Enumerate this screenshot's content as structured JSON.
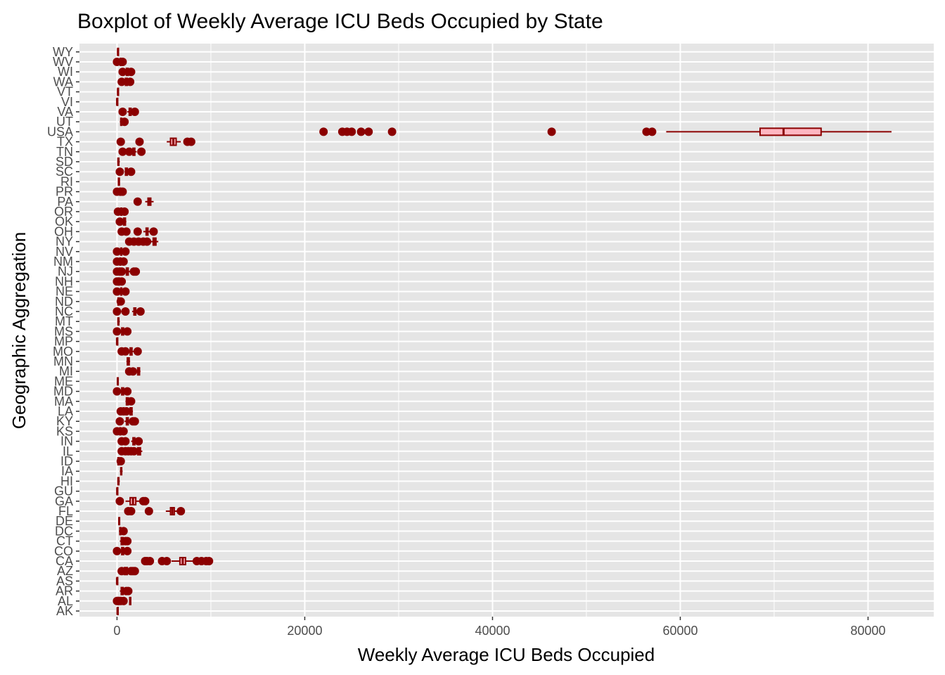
{
  "chart_data": {
    "type": "boxplot",
    "orientation": "horizontal",
    "title": "Boxplot of Weekly Average ICU Beds Occupied by State",
    "xlabel": "Weekly Average ICU Beds Occupied",
    "ylabel": "Geographic Aggregation",
    "xlim": [
      -4000,
      87000
    ],
    "x_ticks": [
      0,
      20000,
      40000,
      60000,
      80000
    ],
    "x_tick_labels": [
      "0",
      "20000",
      "40000",
      "60000",
      "80000"
    ],
    "grid": true,
    "legend": "none",
    "colors": {
      "panel_background": "#e5e5e5",
      "gridline": "#ffffff",
      "box_line": "#8b0000",
      "box_fill": "#ffb6c1",
      "outlier": "#8b0000"
    },
    "categories": [
      "AK",
      "AL",
      "AR",
      "AS",
      "AZ",
      "CA",
      "CO",
      "CT",
      "DC",
      "DE",
      "FL",
      "GA",
      "GU",
      "HI",
      "IA",
      "ID",
      "IL",
      "IN",
      "KS",
      "KY",
      "LA",
      "MA",
      "MD",
      "ME",
      "MI",
      "MN",
      "MO",
      "MP",
      "MS",
      "MT",
      "NC",
      "ND",
      "NE",
      "NH",
      "NJ",
      "NM",
      "NV",
      "NY",
      "OH",
      "OK",
      "OR",
      "PA",
      "PR",
      "RI",
      "SC",
      "SD",
      "TN",
      "TX",
      "USA",
      "UT",
      "VA",
      "VI",
      "VT",
      "WA",
      "WI",
      "WV",
      "WY"
    ],
    "boxes": [
      {
        "category": "AK",
        "whisker_low": 0,
        "q1": 40,
        "median": 55,
        "q3": 70,
        "whisker_high": 130,
        "outliers": []
      },
      {
        "category": "AL",
        "whisker_low": 1300,
        "q1": 1350,
        "median": 1400,
        "q3": 1460,
        "whisker_high": 1500,
        "outliers": [
          0,
          100,
          200,
          400,
          700
        ]
      },
      {
        "category": "AR",
        "whisker_low": 300,
        "q1": 450,
        "median": 550,
        "q3": 650,
        "whisker_high": 800,
        "outliers": [
          1000,
          1200
        ]
      },
      {
        "category": "AS",
        "whisker_low": 0,
        "q1": 0,
        "median": 0,
        "q3": 0,
        "whisker_high": 0,
        "outliers": []
      },
      {
        "category": "AZ",
        "whisker_low": 600,
        "q1": 800,
        "median": 950,
        "q3": 1100,
        "whisker_high": 1300,
        "outliers": [
          500,
          1500,
          1700,
          1900
        ]
      },
      {
        "category": "CA",
        "whisker_low": 5800,
        "q1": 6700,
        "median": 7000,
        "q3": 7300,
        "whisker_high": 8200,
        "outliers": [
          3000,
          3200,
          3500,
          4800,
          5300,
          8500,
          9000,
          9500,
          9800
        ]
      },
      {
        "category": "CO",
        "whisker_low": 300,
        "q1": 500,
        "median": 600,
        "q3": 700,
        "whisker_high": 900,
        "outliers": [
          0,
          1100
        ]
      },
      {
        "category": "CT",
        "whisker_low": 300,
        "q1": 450,
        "median": 550,
        "q3": 650,
        "whisker_high": 750,
        "outliers": [
          900,
          1100
        ]
      },
      {
        "category": "DC",
        "whisker_low": 200,
        "q1": 300,
        "median": 350,
        "q3": 400,
        "whisker_high": 500,
        "outliers": [
          700
        ]
      },
      {
        "category": "DE",
        "whisker_low": 150,
        "q1": 200,
        "median": 230,
        "q3": 270,
        "whisker_high": 300,
        "outliers": []
      },
      {
        "category": "FL",
        "whisker_low": 5200,
        "q1": 5700,
        "median": 5900,
        "q3": 6100,
        "whisker_high": 6400,
        "outliers": [
          1200,
          1500,
          3400,
          6800
        ]
      },
      {
        "category": "GA",
        "whisker_low": 900,
        "q1": 1400,
        "median": 1700,
        "q3": 2000,
        "whisker_high": 2500,
        "outliers": [
          300,
          2800,
          3000
        ]
      },
      {
        "category": "GU",
        "whisker_low": 0,
        "q1": 0,
        "median": 20,
        "q3": 40,
        "whisker_high": 60,
        "outliers": []
      },
      {
        "category": "HI",
        "whisker_low": 50,
        "q1": 100,
        "median": 150,
        "q3": 200,
        "whisker_high": 300,
        "outliers": []
      },
      {
        "category": "IA",
        "whisker_low": 300,
        "q1": 400,
        "median": 450,
        "q3": 500,
        "whisker_high": 600,
        "outliers": []
      },
      {
        "category": "ID",
        "whisker_low": 0,
        "q1": 100,
        "median": 150,
        "q3": 200,
        "whisker_high": 300,
        "outliers": [
          400
        ]
      },
      {
        "category": "IL",
        "whisker_low": 2000,
        "q1": 2200,
        "median": 2350,
        "q3": 2500,
        "whisker_high": 2700,
        "outliers": [
          500,
          900,
          1200,
          1500,
          1800
        ]
      },
      {
        "category": "IN",
        "whisker_low": 1500,
        "q1": 1700,
        "median": 1800,
        "q3": 1900,
        "whisker_high": 2100,
        "outliers": [
          500,
          900,
          2300
        ]
      },
      {
        "category": "KS",
        "whisker_low": 200,
        "q1": 300,
        "median": 350,
        "q3": 400,
        "whisker_high": 500,
        "outliers": [
          0,
          700
        ]
      },
      {
        "category": "KY",
        "whisker_low": 800,
        "q1": 1000,
        "median": 1100,
        "q3": 1200,
        "whisker_high": 1400,
        "outliers": [
          300,
          1700,
          1900
        ]
      },
      {
        "category": "LA",
        "whisker_low": 1200,
        "q1": 1400,
        "median": 1500,
        "q3": 1600,
        "whisker_high": 1700,
        "outliers": [
          400,
          700,
          1000
        ]
      },
      {
        "category": "MA",
        "whisker_low": 900,
        "q1": 1000,
        "median": 1100,
        "q3": 1200,
        "whisker_high": 1300,
        "outliers": [
          1500
        ]
      },
      {
        "category": "MD",
        "whisker_low": 400,
        "q1": 500,
        "median": 600,
        "q3": 700,
        "whisker_high": 900,
        "outliers": [
          0,
          1100
        ]
      },
      {
        "category": "ME",
        "whisker_low": 0,
        "q1": 50,
        "median": 80,
        "q3": 110,
        "whisker_high": 150,
        "outliers": []
      },
      {
        "category": "MI",
        "whisker_low": 2100,
        "q1": 2200,
        "median": 2300,
        "q3": 2400,
        "whisker_high": 2500,
        "outliers": [
          1300,
          1700
        ]
      },
      {
        "category": "MN",
        "whisker_low": 1000,
        "q1": 1100,
        "median": 1200,
        "q3": 1300,
        "whisker_high": 1400,
        "outliers": []
      },
      {
        "category": "MO",
        "whisker_low": 1200,
        "q1": 1400,
        "median": 1500,
        "q3": 1600,
        "whisker_high": 1800,
        "outliers": [
          500,
          900,
          2200
        ]
      },
      {
        "category": "MP",
        "whisker_low": 0,
        "q1": 0,
        "median": 0,
        "q3": 10,
        "whisker_high": 20,
        "outliers": []
      },
      {
        "category": "MS",
        "whisker_low": 400,
        "q1": 500,
        "median": 600,
        "q3": 700,
        "whisker_high": 800,
        "outliers": [
          0,
          1100
        ]
      },
      {
        "category": "MT",
        "whisker_low": 50,
        "q1": 100,
        "median": 150,
        "q3": 200,
        "whisker_high": 300,
        "outliers": []
      },
      {
        "category": "NC",
        "whisker_low": 1600,
        "q1": 1800,
        "median": 1900,
        "q3": 2000,
        "whisker_high": 2200,
        "outliers": [
          0,
          900,
          2500
        ]
      },
      {
        "category": "ND",
        "whisker_low": 50,
        "q1": 100,
        "median": 150,
        "q3": 200,
        "whisker_high": 250,
        "outliers": [
          400
        ]
      },
      {
        "category": "NE",
        "whisker_low": 300,
        "q1": 400,
        "median": 450,
        "q3": 500,
        "whisker_high": 600,
        "outliers": [
          0,
          900
        ]
      },
      {
        "category": "NH",
        "whisker_low": 100,
        "q1": 150,
        "median": 200,
        "q3": 250,
        "whisker_high": 300,
        "outliers": [
          0,
          500
        ]
      },
      {
        "category": "NJ",
        "whisker_low": 800,
        "q1": 1000,
        "median": 1100,
        "q3": 1200,
        "whisker_high": 1400,
        "outliers": [
          0,
          300,
          500,
          1800,
          2000
        ]
      },
      {
        "category": "NM",
        "whisker_low": 200,
        "q1": 300,
        "median": 350,
        "q3": 400,
        "whisker_high": 500,
        "outliers": [
          0,
          700
        ]
      },
      {
        "category": "NV",
        "whisker_low": 300,
        "q1": 400,
        "median": 450,
        "q3": 500,
        "whisker_high": 600,
        "outliers": [
          0,
          900
        ]
      },
      {
        "category": "NY",
        "whisker_low": 3600,
        "q1": 3850,
        "median": 4000,
        "q3": 4150,
        "whisker_high": 4400,
        "outliers": [
          1300,
          1800,
          2300,
          2800,
          3200
        ]
      },
      {
        "category": "OH",
        "whisker_low": 2800,
        "q1": 3100,
        "median": 3200,
        "q3": 3300,
        "whisker_high": 3500,
        "outliers": [
          500,
          1000,
          2200,
          3900
        ]
      },
      {
        "category": "OK",
        "whisker_low": 600,
        "q1": 700,
        "median": 800,
        "q3": 900,
        "whisker_high": 1000,
        "outliers": [
          300
        ]
      },
      {
        "category": "OR",
        "whisker_low": 300,
        "q1": 400,
        "median": 450,
        "q3": 500,
        "whisker_high": 600,
        "outliers": [
          100,
          800
        ]
      },
      {
        "category": "PA",
        "whisker_low": 3000,
        "q1": 3300,
        "median": 3450,
        "q3": 3600,
        "whisker_high": 3900,
        "outliers": [
          2200
        ]
      },
      {
        "category": "PR",
        "whisker_low": 200,
        "q1": 300,
        "median": 350,
        "q3": 400,
        "whisker_high": 500,
        "outliers": [
          0,
          600
        ]
      },
      {
        "category": "RI",
        "whisker_low": 100,
        "q1": 150,
        "median": 200,
        "q3": 250,
        "whisker_high": 300,
        "outliers": []
      },
      {
        "category": "SC",
        "whisker_low": 800,
        "q1": 900,
        "median": 1000,
        "q3": 1100,
        "whisker_high": 1200,
        "outliers": [
          300,
          1500
        ]
      },
      {
        "category": "SD",
        "whisker_low": 50,
        "q1": 100,
        "median": 150,
        "q3": 200,
        "whisker_high": 300,
        "outliers": []
      },
      {
        "category": "TN",
        "whisker_low": 1500,
        "q1": 1700,
        "median": 1800,
        "q3": 1900,
        "whisker_high": 2100,
        "outliers": [
          600,
          1300,
          2600
        ]
      },
      {
        "category": "TX",
        "whisker_low": 5300,
        "q1": 5700,
        "median": 6000,
        "q3": 6300,
        "whisker_high": 6800,
        "outliers": [
          400,
          2400,
          7500,
          7900
        ]
      },
      {
        "category": "USA",
        "whisker_low": 58500,
        "q1": 68500,
        "median": 71000,
        "q3": 75000,
        "whisker_high": 82500,
        "outliers": [
          22000,
          24000,
          24500,
          25000,
          26000,
          26800,
          29300,
          46300,
          56400,
          57000
        ]
      },
      {
        "category": "UT",
        "whisker_low": 300,
        "q1": 400,
        "median": 450,
        "q3": 500,
        "whisker_high": 600,
        "outliers": [
          800
        ]
      },
      {
        "category": "VA",
        "whisker_low": 1100,
        "q1": 1300,
        "median": 1400,
        "q3": 1500,
        "whisker_high": 1700,
        "outliers": [
          600,
          1900
        ]
      },
      {
        "category": "VI",
        "whisker_low": 0,
        "q1": 0,
        "median": 10,
        "q3": 20,
        "whisker_high": 30,
        "outliers": []
      },
      {
        "category": "VT",
        "whisker_low": 50,
        "q1": 80,
        "median": 100,
        "q3": 130,
        "whisker_high": 150,
        "outliers": []
      },
      {
        "category": "WA",
        "whisker_low": 800,
        "q1": 900,
        "median": 1000,
        "q3": 1100,
        "whisker_high": 1200,
        "outliers": [
          500,
          1400
        ]
      },
      {
        "category": "WI",
        "whisker_low": 900,
        "q1": 1000,
        "median": 1100,
        "q3": 1200,
        "whisker_high": 1300,
        "outliers": [
          600,
          1500
        ]
      },
      {
        "category": "WV",
        "whisker_low": 300,
        "q1": 350,
        "median": 400,
        "q3": 450,
        "whisker_high": 500,
        "outliers": [
          0,
          600
        ]
      },
      {
        "category": "WY",
        "whisker_low": 50,
        "q1": 80,
        "median": 100,
        "q3": 130,
        "whisker_high": 150,
        "outliers": []
      }
    ]
  }
}
